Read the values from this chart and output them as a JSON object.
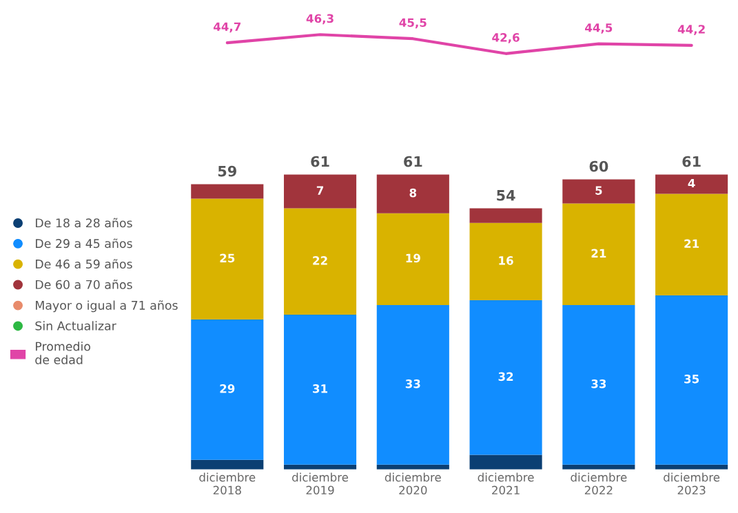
{
  "chart_data": [
    {
      "type": "line",
      "categories": [
        null,
        null,
        null,
        null,
        null,
        null
      ],
      "tick_labels": false,
      "series": [
        {
          "name": "Promedio\nde edad",
          "color": "#e044a7",
          "values": [
            44.7,
            46.3,
            45.5,
            42.6,
            44.5,
            44.2
          ],
          "value_labels": [
            "44,7",
            "46,3",
            "45,5",
            "42,6",
            "44,5",
            "44,2"
          ]
        }
      ]
    },
    {
      "type": "bar",
      "stacked": true,
      "categories": [
        "diciembre\n2018",
        "diciembre\n2019",
        "diciembre\n2020",
        "diciembre\n2021",
        "diciembre\n2022",
        "diciembre\n2023"
      ],
      "series": [
        {
          "name": "De 18 a 28 años",
          "color": "#0b3f73",
          "values": [
            2,
            1,
            1,
            3,
            1,
            1
          ],
          "value_labels": [
            null,
            null,
            null,
            null,
            null,
            null
          ]
        },
        {
          "name": "De 29 a 45 años",
          "color": "#118dff",
          "values": [
            29,
            31,
            33,
            32,
            33,
            35
          ],
          "value_labels": [
            "29",
            "31",
            "33",
            "32",
            "33",
            "35"
          ]
        },
        {
          "name": "De 46 a 59 años",
          "color": "#d9b300",
          "values": [
            25,
            22,
            19,
            16,
            21,
            21
          ],
          "value_labels": [
            "25",
            "22",
            "19",
            "16",
            "21",
            "21"
          ]
        },
        {
          "name": "De 60 a 70 años",
          "color": "#a1343c",
          "values": [
            3,
            7,
            8,
            3,
            5,
            4
          ],
          "value_labels": [
            null,
            "7",
            "8",
            null,
            "5",
            "4"
          ]
        },
        {
          "name": "Mayor o igual a 71 años",
          "color": "#e88b6b",
          "values": [
            0,
            0,
            0,
            0,
            0,
            0
          ],
          "value_labels": [
            null,
            null,
            null,
            null,
            null,
            null
          ]
        },
        {
          "name": "Sin Actualizar",
          "color": "#2db843",
          "values": [
            0,
            0,
            0,
            0,
            0,
            0
          ],
          "value_labels": [
            null,
            null,
            null,
            null,
            null,
            null
          ]
        }
      ],
      "totals": [
        "59",
        "61",
        "61",
        "54",
        "60",
        "61"
      ],
      "legend": "left",
      "tick_labels": "x"
    }
  ]
}
